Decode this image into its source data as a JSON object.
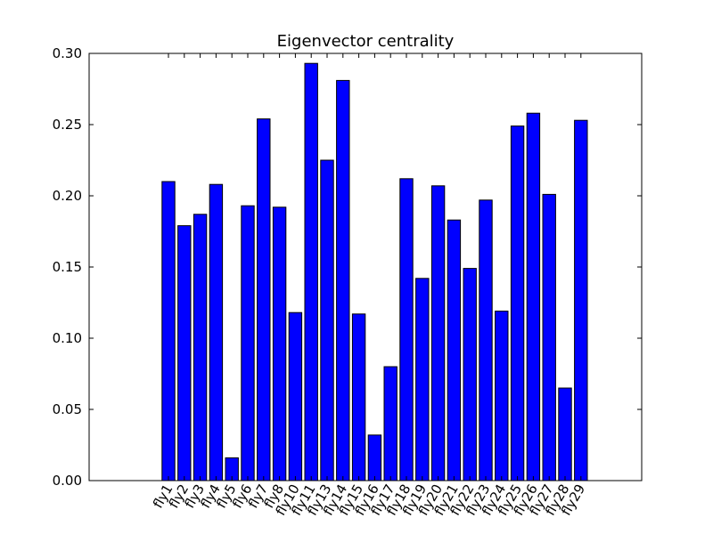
{
  "chart_data": {
    "type": "bar",
    "title": "Eigenvector centrality",
    "xlabel": "",
    "ylabel": "",
    "ylim": [
      0,
      0.3
    ],
    "yticks": [
      "0.00",
      "0.05",
      "0.10",
      "0.15",
      "0.20",
      "0.25",
      "0.30"
    ],
    "ytick_values": [
      0,
      0.05,
      0.1,
      0.15,
      0.2,
      0.25,
      0.3
    ],
    "categories": [
      "fly1",
      "fly2",
      "fly3",
      "fly4",
      "fly5",
      "fly6",
      "fly7",
      "fly8",
      "fly10",
      "fly11",
      "fly13",
      "fly14",
      "fly15",
      "fly16",
      "fly17",
      "fly18",
      "fly19",
      "fly20",
      "fly21",
      "fly22",
      "fly23",
      "fly24",
      "fly25",
      "fly26",
      "fly27",
      "fly28",
      "fly29"
    ],
    "values": [
      0.21,
      0.179,
      0.187,
      0.208,
      0.016,
      0.193,
      0.254,
      0.192,
      0.118,
      0.293,
      0.225,
      0.281,
      0.117,
      0.032,
      0.08,
      0.212,
      0.142,
      0.207,
      0.183,
      0.149,
      0.197,
      0.119,
      0.249,
      0.258,
      0.201,
      0.065,
      0.253
    ],
    "bar_color": "#0000ff",
    "grid": false
  }
}
